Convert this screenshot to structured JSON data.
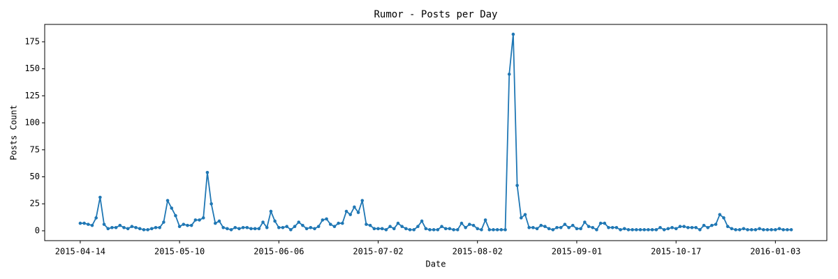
{
  "chart_data": {
    "type": "line",
    "title": "Rumor - Posts per Day",
    "x_label": "Date",
    "y_label": "Posts Count",
    "color": "#1f77b4",
    "categories": [
      "2015-04-14",
      null,
      null,
      null,
      null,
      null,
      null,
      null,
      null,
      null,
      null,
      null,
      null,
      null,
      null,
      null,
      null,
      null,
      null,
      null,
      null,
      null,
      null,
      null,
      null,
      "2015-05-10",
      null,
      null,
      null,
      null,
      null,
      null,
      null,
      null,
      null,
      null,
      null,
      null,
      null,
      null,
      null,
      null,
      null,
      null,
      null,
      null,
      null,
      null,
      null,
      null,
      "2015-06-06",
      null,
      null,
      null,
      null,
      null,
      null,
      null,
      null,
      null,
      null,
      null,
      null,
      null,
      null,
      null,
      null,
      null,
      null,
      null,
      null,
      null,
      null,
      null,
      null,
      "2015-07-02",
      null,
      null,
      null,
      null,
      null,
      null,
      null,
      null,
      null,
      null,
      null,
      null,
      null,
      null,
      null,
      null,
      null,
      null,
      null,
      null,
      null,
      null,
      null,
      null,
      "2015-08-02",
      null,
      null,
      null,
      null,
      null,
      null,
      null,
      null,
      null,
      null,
      null,
      null,
      null,
      null,
      null,
      null,
      null,
      null,
      null,
      null,
      null,
      null,
      null,
      null,
      "2015-09-01",
      null,
      null,
      null,
      null,
      null,
      null,
      null,
      null,
      null,
      null,
      null,
      null,
      null,
      null,
      null,
      null,
      null,
      null,
      null,
      null,
      null,
      null,
      null,
      null,
      "2015-10-17",
      null,
      null,
      null,
      null,
      null,
      null,
      null,
      null,
      null,
      null,
      null,
      null,
      null,
      null,
      null,
      null,
      null,
      null,
      null,
      null,
      null,
      null,
      null,
      null,
      "2016-01-03",
      null,
      null,
      null,
      null
    ],
    "values": [
      7,
      7,
      6,
      5,
      12,
      31,
      6,
      2,
      3,
      3,
      5,
      3,
      2,
      4,
      3,
      2,
      1,
      1,
      2,
      3,
      3,
      8,
      28,
      21,
      14,
      4,
      6,
      5,
      5,
      10,
      10,
      12,
      54,
      25,
      7,
      9,
      3,
      2,
      1,
      3,
      2,
      3,
      3,
      2,
      2,
      2,
      8,
      3,
      18,
      9,
      3,
      3,
      4,
      1,
      4,
      8,
      5,
      2,
      3,
      2,
      4,
      10,
      11,
      6,
      4,
      7,
      7,
      18,
      15,
      22,
      17,
      28,
      6,
      5,
      2,
      2,
      2,
      1,
      4,
      2,
      7,
      4,
      2,
      1,
      1,
      4,
      9,
      2,
      1,
      1,
      1,
      4,
      2,
      2,
      1,
      1,
      7,
      3,
      6,
      5,
      2,
      1,
      10,
      1,
      1,
      1,
      1,
      1,
      145,
      182,
      42,
      12,
      15,
      3,
      3,
      2,
      5,
      4,
      2,
      1,
      3,
      3,
      6,
      3,
      5,
      2,
      2,
      8,
      4,
      3,
      1,
      7,
      7,
      3,
      3,
      3,
      1,
      2,
      1,
      1,
      1,
      1,
      1,
      1,
      1,
      1,
      3,
      1,
      2,
      3,
      2,
      4,
      4,
      3,
      3,
      3,
      1,
      5,
      3,
      5,
      6,
      15,
      12,
      4,
      2,
      1,
      1,
      2,
      1,
      1,
      1,
      2,
      1,
      1,
      1,
      1,
      2,
      1,
      1,
      1
    ],
    "xlim": [
      -8.95,
      187.95
    ],
    "ylim": [
      -9.1,
      191.1
    ],
    "yticks": [
      0,
      25,
      50,
      75,
      100,
      125,
      150,
      175
    ]
  }
}
